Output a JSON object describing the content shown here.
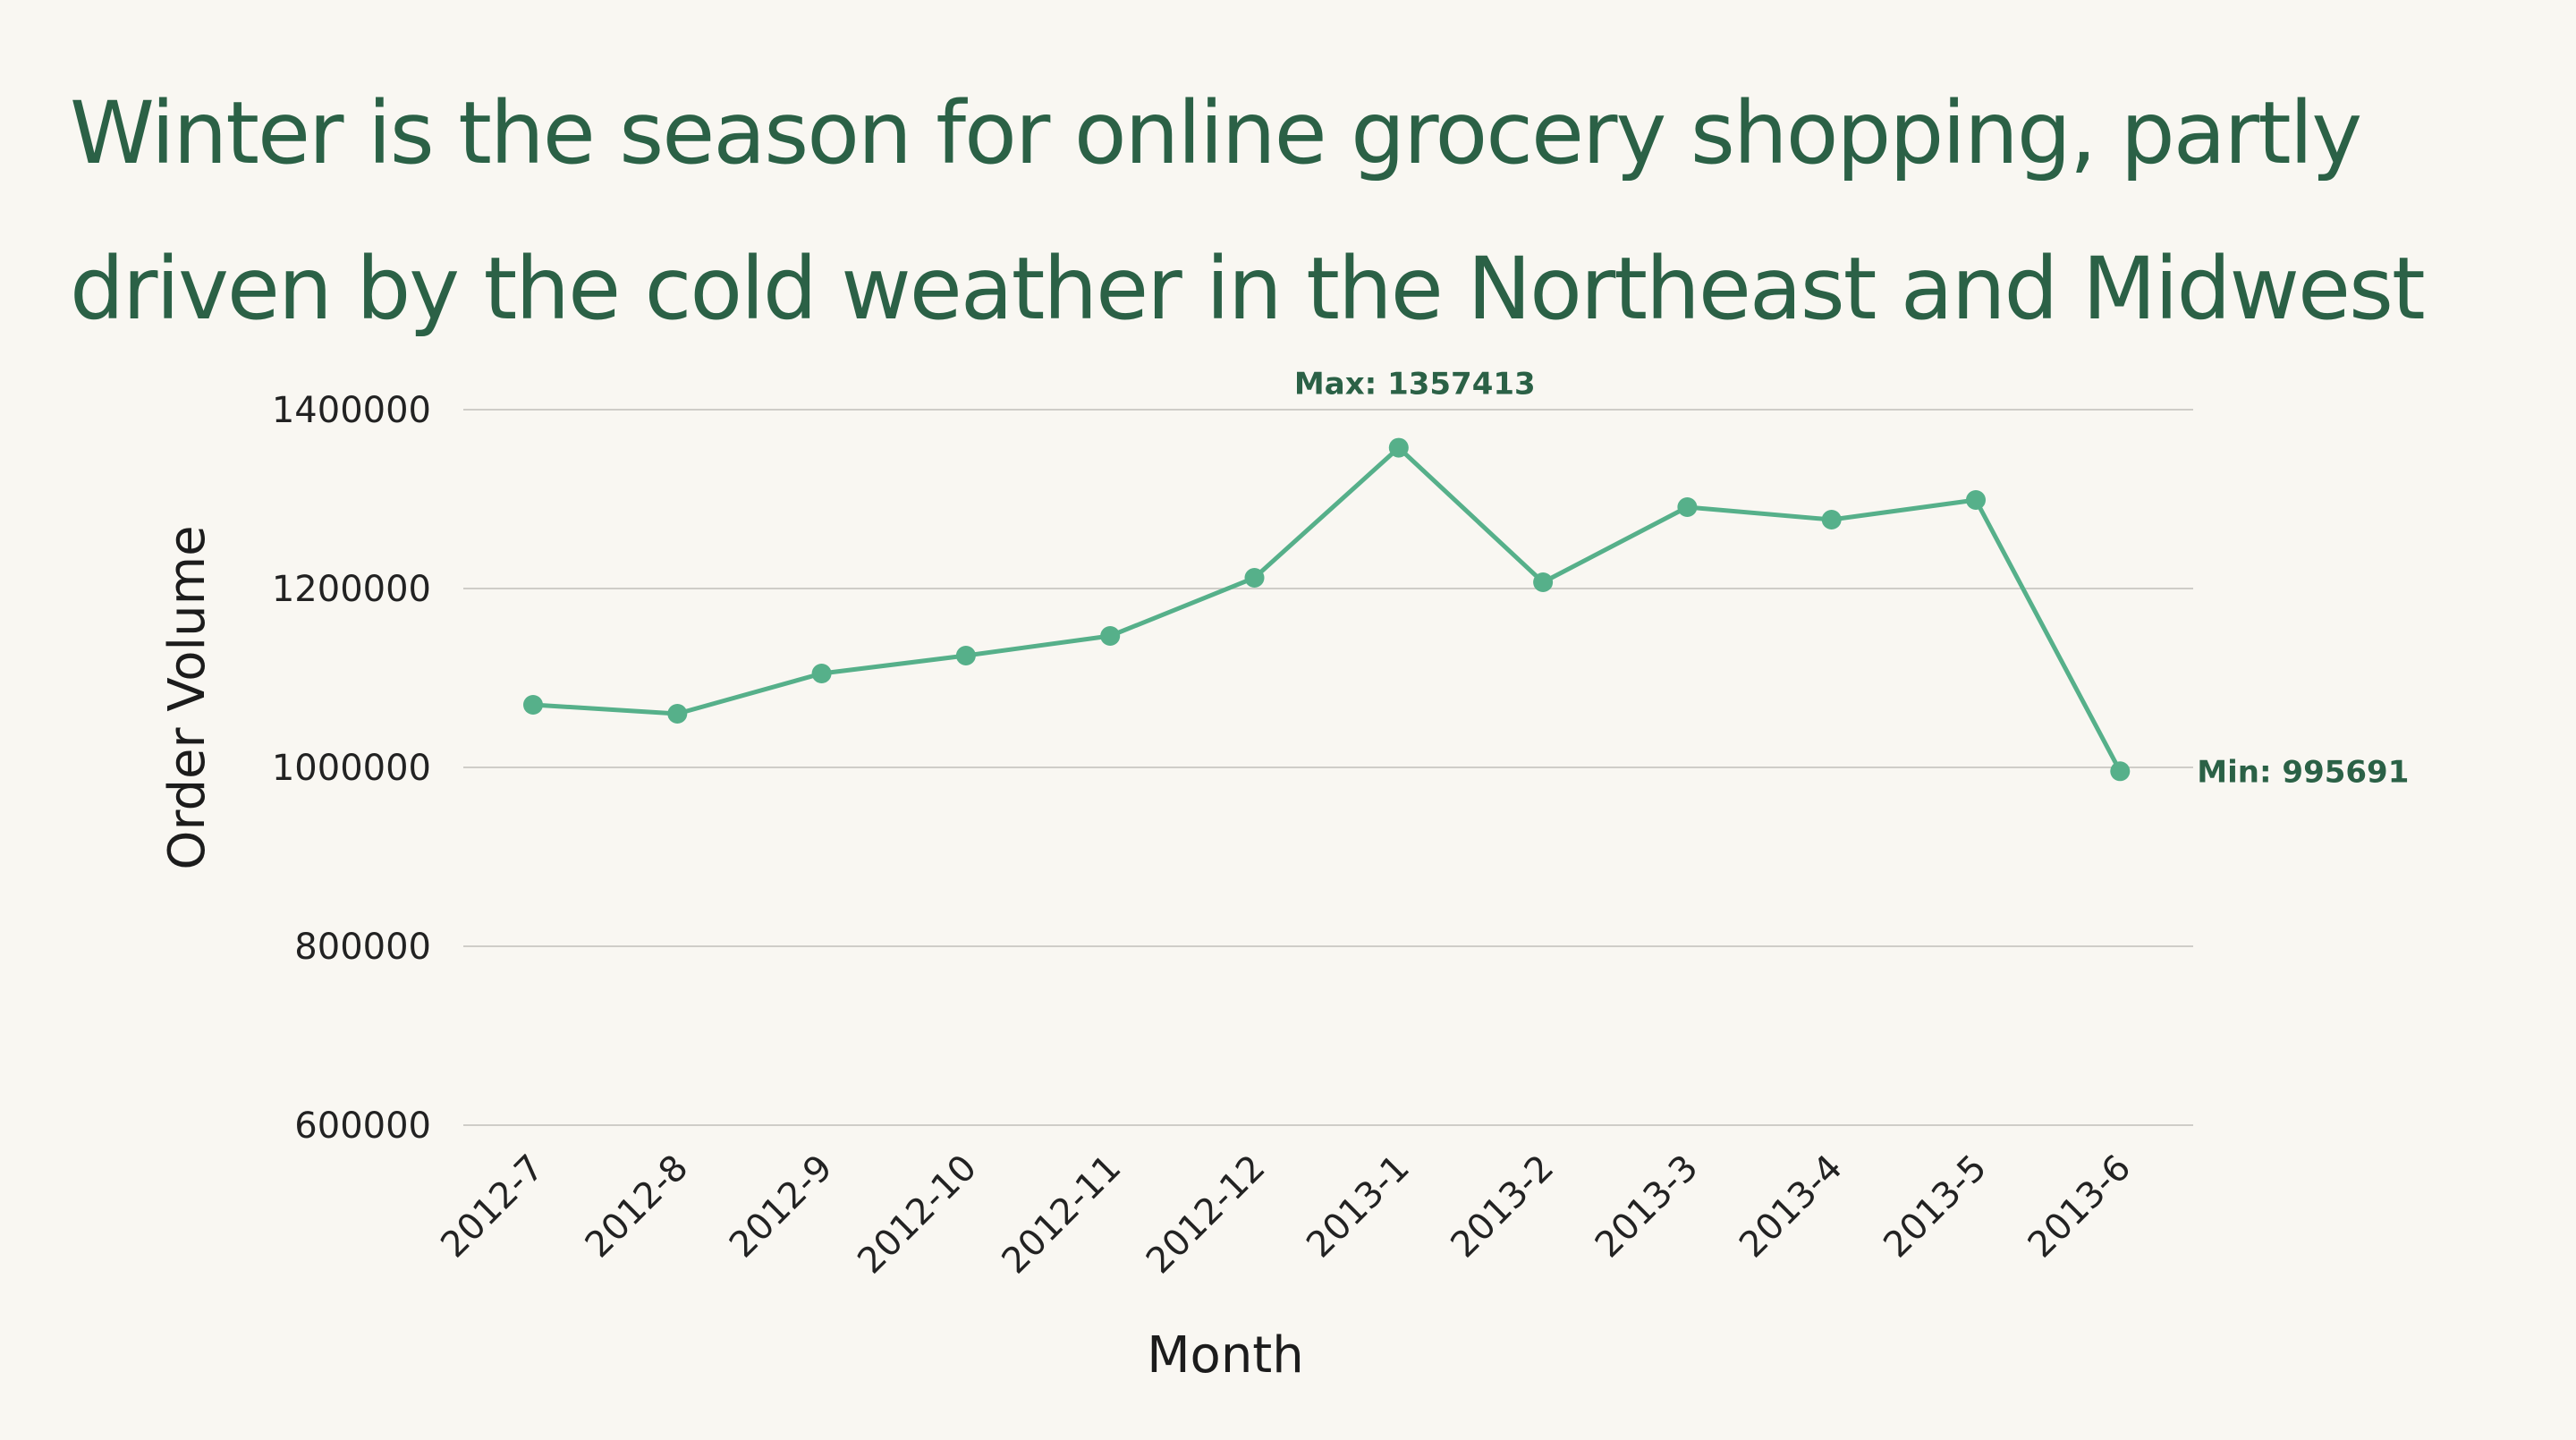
{
  "chart_data": {
    "type": "line",
    "title": "Winter is the season for online grocery shopping, partly driven by the cold weather in the Northeast and Midwest",
    "title_lines": [
      "Winter is the season for online grocery shopping, partly",
      "driven by the cold weather in the Northeast and Midwest"
    ],
    "xlabel": "Month",
    "ylabel": "Order Volume",
    "categories": [
      "2012-7",
      "2012-8",
      "2012-9",
      "2012-10",
      "2012-11",
      "2012-12",
      "2013-1",
      "2013-2",
      "2013-3",
      "2013-4",
      "2013-5",
      "2013-6"
    ],
    "values": [
      1070000,
      1060000,
      1105000,
      1125000,
      1147000,
      1212000,
      1357413,
      1207000,
      1291000,
      1277000,
      1299000,
      995691
    ],
    "ylim": [
      600000,
      1400000
    ],
    "yticks": [
      600000,
      800000,
      1000000,
      1200000,
      1400000
    ],
    "grid": true,
    "annotations": [
      {
        "label": "Max: 1357413",
        "category": "2013-1",
        "value": 1357413
      },
      {
        "label": "Min: 995691",
        "category": "2013-6",
        "value": 995691
      }
    ],
    "colors": {
      "title": "#2b6146",
      "series": "#56b08a",
      "annotation": "#2b6146",
      "grid": "#cfcdc8"
    }
  }
}
